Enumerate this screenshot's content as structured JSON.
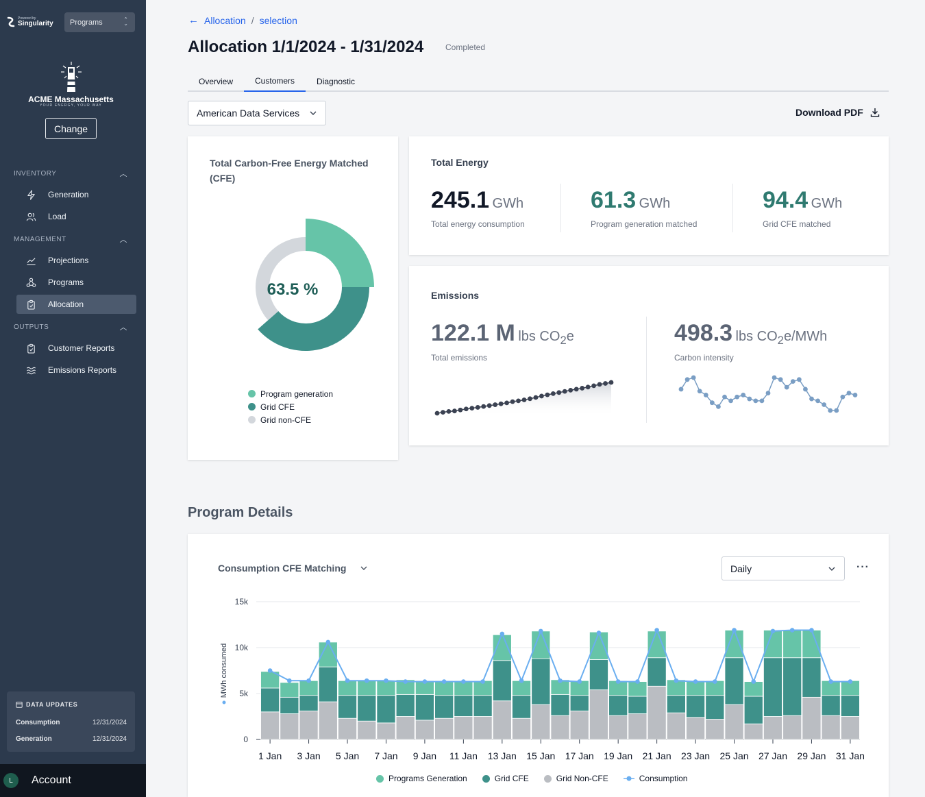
{
  "sidebar": {
    "logo_small": "Powered by",
    "logo_brand": "Singularity",
    "program_select": "Programs",
    "company_name": "ACME Massachusetts",
    "company_tagline": "YOUR ENERGY, YOUR WAY",
    "change_label": "Change",
    "sections": {
      "inventory": "INVENTORY",
      "management": "MANAGEMENT",
      "outputs": "OUTPUTS"
    },
    "items": {
      "generation": "Generation",
      "load": "Load",
      "projections": "Projections",
      "programs": "Programs",
      "allocation": "Allocation",
      "customer_reports": "Customer Reports",
      "emissions_reports": "Emissions Reports"
    },
    "data_updates": {
      "title": "DATA UPDATES",
      "rows": [
        {
          "label": "Consumption",
          "date": "12/31/2024"
        },
        {
          "label": "Generation",
          "date": "12/31/2024"
        }
      ]
    },
    "account": {
      "initial": "L",
      "label": "Account"
    }
  },
  "breadcrumb": {
    "parent": "Allocation",
    "current": "selection"
  },
  "page": {
    "title": "Allocation 1/1/2024 - 1/31/2024",
    "status": "Completed"
  },
  "tabs": [
    "Overview",
    "Customers",
    "Diagnostic"
  ],
  "active_tab": "Customers",
  "customer_select": "American Data Services",
  "download_label": "Download PDF",
  "cfe_card": {
    "title": "Total Carbon-Free Energy Matched (CFE)",
    "center_value": "63.5 %",
    "legend": [
      "Program generation",
      "Grid CFE",
      "Grid non-CFE"
    ],
    "slices": [
      {
        "name": "Program generation",
        "value": 25.0,
        "color": "#66c4a8"
      },
      {
        "name": "Grid CFE",
        "value": 38.5,
        "color": "#3e918a"
      },
      {
        "name": "Grid non-CFE",
        "value": 36.5,
        "color": "#d3d7dc"
      }
    ]
  },
  "energy_card": {
    "title": "Total Energy",
    "metrics": [
      {
        "value": "245.1",
        "unit": "GWh",
        "label": "Total energy consumption",
        "color": "#111827"
      },
      {
        "value": "61.3",
        "unit": "GWh",
        "label": "Program generation matched",
        "color": "#2f7a70"
      },
      {
        "value": "94.4",
        "unit": "GWh",
        "label": "Grid CFE matched",
        "color": "#2f7a70"
      }
    ]
  },
  "emissions_card": {
    "title": "Emissions",
    "total": {
      "value": "122.1 M",
      "unit_a": "lbs CO",
      "sub": "2",
      "unit_b": "e",
      "label": "Total emissions"
    },
    "intensity": {
      "value": "498.3",
      "unit_a": "lbs CO",
      "sub": "2",
      "unit_b": "e/MWh",
      "label": "Carbon intensity"
    },
    "cumulative_trend": [
      1.5,
      2.7,
      3.8,
      4.4,
      5.7,
      7.0,
      8.0,
      9.0,
      10.2,
      11.3,
      12.4,
      13.6,
      14.8,
      16.3,
      17.4,
      18.6,
      20.1,
      21.7,
      23.5,
      25.1,
      26.6,
      28.0,
      29.5,
      31.0,
      32.3,
      33.6,
      35.0,
      36.7,
      38.5,
      39.7,
      41.0
    ],
    "intensity_trend": [
      505,
      510,
      511,
      504,
      502,
      498,
      496,
      501,
      499,
      501,
      502,
      500,
      499,
      499,
      503,
      511,
      510,
      506,
      509,
      510,
      505,
      500,
      499,
      497,
      494,
      494,
      501,
      503,
      502
    ]
  },
  "program_details_title": "Program Details",
  "chart_card": {
    "selector": "Consumption CFE Matching",
    "interval": "Daily",
    "more": "···"
  },
  "chart_data": {
    "type": "bar",
    "stacked": true,
    "categories": [
      "1 Jan",
      "2 Jan",
      "3 Jan",
      "4 Jan",
      "5 Jan",
      "6 Jan",
      "7 Jan",
      "8 Jan",
      "9 Jan",
      "10 Jan",
      "11 Jan",
      "12 Jan",
      "13 Jan",
      "14 Jan",
      "15 Jan",
      "16 Jan",
      "17 Jan",
      "18 Jan",
      "19 Jan",
      "20 Jan",
      "21 Jan",
      "22 Jan",
      "23 Jan",
      "24 Jan",
      "25 Jan",
      "26 Jan",
      "27 Jan",
      "28 Jan",
      "29 Jan",
      "30 Jan",
      "31 Jan"
    ],
    "tick_labels": [
      "1 Jan",
      "3 Jan",
      "5 Jan",
      "7 Jan",
      "9 Jan",
      "11 Jan",
      "13 Jan",
      "15 Jan",
      "17 Jan",
      "19 Jan",
      "21 Jan",
      "23 Jan",
      "25 Jan",
      "27 Jan",
      "29 Jan",
      "31 Jan"
    ],
    "ylabel": "MWh consumed",
    "ylim": [
      0,
      15000
    ],
    "yticks": [
      0,
      5000,
      10000,
      15000
    ],
    "ytick_labels": [
      "0",
      "5k",
      "10k",
      "15k"
    ],
    "series": [
      {
        "name": "Grid Non-CFE",
        "color": "#babdc2",
        "values": [
          3000,
          2800,
          3100,
          4100,
          2300,
          2000,
          1800,
          2500,
          2100,
          2300,
          2500,
          2500,
          4200,
          2300,
          3800,
          2600,
          3100,
          5400,
          2600,
          2800,
          5800,
          2900,
          2400,
          2200,
          3800,
          1700,
          2500,
          2600,
          4600,
          2600,
          2500
        ]
      },
      {
        "name": "Grid CFE",
        "color": "#3e918a",
        "values": [
          2600,
          1800,
          1700,
          3800,
          2500,
          2800,
          3000,
          2400,
          2800,
          2500,
          2300,
          2300,
          4400,
          2500,
          5000,
          2300,
          1700,
          3300,
          2200,
          1900,
          3100,
          1900,
          2400,
          2600,
          5100,
          3000,
          6400,
          6300,
          4300,
          2200,
          2300
        ]
      },
      {
        "name": "Programs Generation",
        "color": "#66c4a8",
        "values": [
          1800,
          1600,
          1600,
          2700,
          1600,
          1600,
          1600,
          1600,
          1500,
          1600,
          1600,
          1600,
          2800,
          1600,
          3000,
          1600,
          1600,
          3000,
          1600,
          1600,
          2900,
          1700,
          1600,
          1600,
          3000,
          1600,
          3000,
          3000,
          3000,
          1600,
          1600
        ]
      }
    ],
    "line": {
      "name": "Consumption",
      "color": "#6aaef0",
      "values": [
        7500,
        6400,
        6400,
        10600,
        6400,
        6400,
        6400,
        6300,
        6300,
        6300,
        6300,
        6300,
        11500,
        6400,
        11800,
        6400,
        6300,
        11600,
        6300,
        6300,
        11900,
        6400,
        6300,
        6300,
        11900,
        6300,
        11800,
        11900,
        11900,
        6300,
        6300
      ]
    },
    "legend": [
      "Programs Generation",
      "Grid CFE",
      "Grid Non-CFE",
      "Consumption"
    ],
    "legend_placement": "bottom",
    "grid": true
  }
}
